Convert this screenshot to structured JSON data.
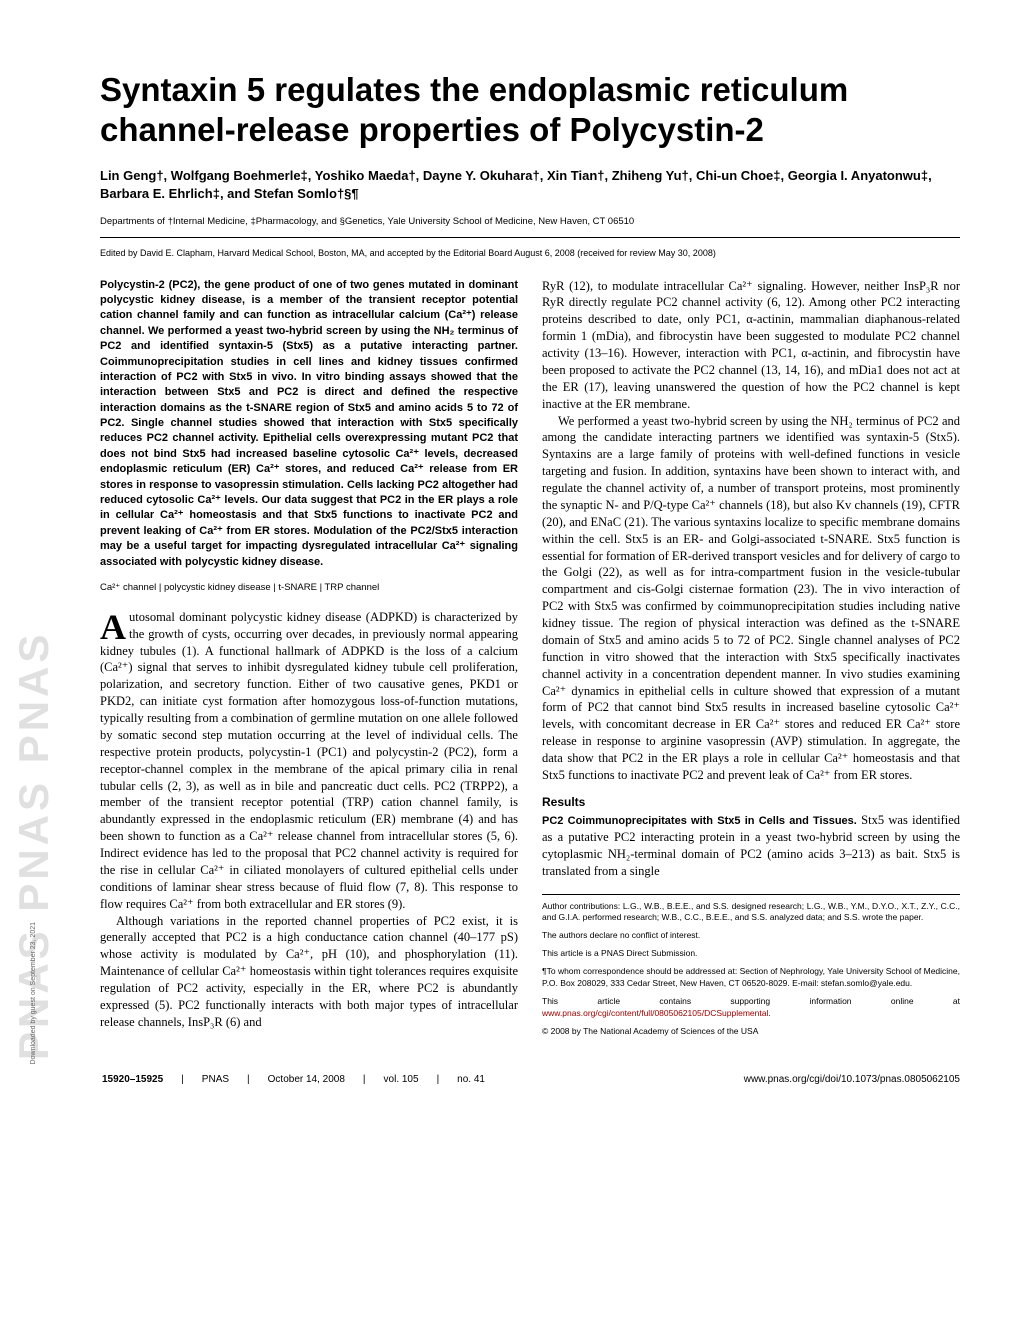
{
  "title": "Syntaxin 5 regulates the endoplasmic reticulum channel-release properties of Polycystin-2",
  "authors": "Lin Geng†, Wolfgang Boehmerle‡, Yoshiko Maeda†, Dayne Y. Okuhara†, Xin Tian†, Zhiheng Yu†, Chi-un Choe‡, Georgia I. Anyatonwu‡, Barbara E. Ehrlich‡, and Stefan Somlo†§¶",
  "affiliations": "Departments of †Internal Medicine, ‡Pharmacology, and §Genetics, Yale University School of Medicine, New Haven, CT 06510",
  "editor_note": "Edited by David E. Clapham, Harvard Medical School, Boston, MA, and accepted by the Editorial Board August 6, 2008 (received for review May 30, 2008)",
  "abstract": "Polycystin-2 (PC2), the gene product of one of two genes mutated in dominant polycystic kidney disease, is a member of the transient receptor potential cation channel family and can function as intracellular calcium (Ca²⁺) release channel. We performed a yeast two-hybrid screen by using the NH₂ terminus of PC2 and identified syntaxin-5 (Stx5) as a putative interacting partner. Coimmunoprecipitation studies in cell lines and kidney tissues confirmed interaction of PC2 with Stx5 in vivo. In vitro binding assays showed that the interaction between Stx5 and PC2 is direct and defined the respective interaction domains as the t-SNARE region of Stx5 and amino acids 5 to 72 of PC2. Single channel studies showed that interaction with Stx5 specifically reduces PC2 channel activity. Epithelial cells overexpressing mutant PC2 that does not bind Stx5 had increased baseline cytosolic Ca²⁺ levels, decreased endoplasmic reticulum (ER) Ca²⁺ stores, and reduced Ca²⁺ release from ER stores in response to vasopressin stimulation. Cells lacking PC2 altogether had reduced cytosolic Ca²⁺ levels. Our data suggest that PC2 in the ER plays a role in cellular Ca²⁺ homeostasis and that Stx5 functions to inactivate PC2 and prevent leaking of Ca²⁺ from ER stores. Modulation of the PC2/Stx5 interaction may be a useful target for impacting dysregulated intracellular Ca²⁺ signaling associated with polycystic kidney disease.",
  "keywords": "Ca²⁺ channel | polycystic kidney disease | t-SNARE | TRP channel",
  "intro_first_letter": "A",
  "intro_para1": "utosomal dominant polycystic kidney disease (ADPKD) is characterized by the growth of cysts, occurring over decades, in previously normal appearing kidney tubules (1). A functional hallmark of ADPKD is the loss of a calcium (Ca²⁺) signal that serves to inhibit dysregulated kidney tubule cell proliferation, polarization, and secretory function. Either of two causative genes, PKD1 or PKD2, can initiate cyst formation after homozygous loss-of-function mutations, typically resulting from a combination of germline mutation on one allele followed by somatic second step mutation occurring at the level of individual cells. The respective protein products, polycystin-1 (PC1) and polycystin-2 (PC2), form a receptor-channel complex in the membrane of the apical primary cilia in renal tubular cells (2, 3), as well as in bile and pancreatic duct cells. PC2 (TRPP2), a member of the transient receptor potential (TRP) cation channel family, is abundantly expressed in the endoplasmic reticulum (ER) membrane (4) and has been shown to function as a Ca²⁺ release channel from intracellular stores (5, 6). Indirect evidence has led to the proposal that PC2 channel activity is required for the rise in cellular Ca²⁺ in ciliated monolayers of cultured epithelial cells under conditions of laminar shear stress because of fluid flow (7, 8). This response to flow requires Ca²⁺ from both extracellular and ER stores (9).",
  "intro_para2": "Although variations in the reported channel properties of PC2 exist, it is generally accepted that PC2 is a high conductance cation channel (40–177 pS) whose activity is modulated by Ca²⁺, pH (10), and phosphorylation (11). Maintenance of cellular Ca²⁺ homeostasis within tight tolerances requires exquisite regulation of PC2 activity, especially in the ER, where PC2 is abundantly expressed (5). PC2 functionally interacts with both major types of intracellular release channels, InsP₃R (6) and",
  "col2_para1": "RyR (12), to modulate intracellular Ca²⁺ signaling. However, neither InsP₃R nor RyR directly regulate PC2 channel activity (6, 12). Among other PC2 interacting proteins described to date, only PC1, α-actinin, mammalian diaphanous-related formin 1 (mDia), and fibrocystin have been suggested to modulate PC2 channel activity (13–16). However, interaction with PC1, α-actinin, and fibrocystin have been proposed to activate the PC2 channel (13, 14, 16), and mDia1 does not act at the ER (17), leaving unanswered the question of how the PC2 channel is kept inactive at the ER membrane.",
  "col2_para2": "We performed a yeast two-hybrid screen by using the NH₂ terminus of PC2 and among the candidate interacting partners we identified was syntaxin-5 (Stx5). Syntaxins are a large family of proteins with well-defined functions in vesicle targeting and fusion. In addition, syntaxins have been shown to interact with, and regulate the channel activity of, a number of transport proteins, most prominently the synaptic N- and P/Q-type Ca²⁺ channels (18), but also Kv channels (19), CFTR (20), and ENaC (21). The various syntaxins localize to specific membrane domains within the cell. Stx5 is an ER- and Golgi-associated t-SNARE. Stx5 function is essential for formation of ER-derived transport vesicles and for delivery of cargo to the Golgi (22), as well as for intra-compartment fusion in the vesicle-tubular compartment and cis-Golgi cisternae formation (23). The in vivo interaction of PC2 with Stx5 was confirmed by coimmunoprecipitation studies including native kidney tissue. The region of physical interaction was defined as the t-SNARE domain of Stx5 and amino acids 5 to 72 of PC2. Single channel analyses of PC2 function in vitro showed that the interaction with Stx5 specifically inactivates channel activity in a concentration dependent manner. In vivo studies examining Ca²⁺ dynamics in epithelial cells in culture showed that expression of a mutant form of PC2 that cannot bind Stx5 results in increased baseline cytosolic Ca²⁺ levels, with concomitant decrease in ER Ca²⁺ stores and reduced ER Ca²⁺ store release in response to arginine vasopressin (AVP) stimulation. In aggregate, the data show that PC2 in the ER plays a role in cellular Ca²⁺ homeostasis and that Stx5 functions to inactivate PC2 and prevent leak of Ca²⁺ from ER stores.",
  "results_head": "Results",
  "results_sub": "PC2 Coimmunoprecipitates with Stx5 in Cells and Tissues.",
  "results_text": " Stx5 was identified as a putative PC2 interacting protein in a yeast two-hybrid screen by using the cytoplasmic NH₂-terminal domain of PC2 (amino acids 3–213) as bait. Stx5 is translated from a single",
  "fn1": "Author contributions: L.G., W.B., B.E.E., and S.S. designed research; L.G., W.B., Y.M., D.Y.O., X.T., Z.Y., C.C., and G.I.A. performed research; W.B., C.C., B.E.E., and S.S. analyzed data; and S.S. wrote the paper.",
  "fn2": "The authors declare no conflict of interest.",
  "fn3": "This article is a PNAS Direct Submission.",
  "fn4": "¶To whom correspondence should be addressed at: Section of Nephrology, Yale University School of Medicine, P.O. Box 208029, 333 Cedar Street, New Haven, CT 06520-8029. E-mail: stefan.somlo@yale.edu.",
  "fn5_pre": "This article contains supporting information online at ",
  "fn5_link": "www.pnas.org/cgi/content/full/0805062105/DCSupplemental",
  "fn5_post": ".",
  "fn6": "© 2008 by The National Academy of Sciences of the USA",
  "footer": {
    "pages": "15920–15925",
    "journal": "PNAS",
    "date": "October 14, 2008",
    "vol": "vol. 105",
    "no": "no. 41",
    "doi": "www.pnas.org/cgi/doi/10.1073/pnas.0805062105"
  },
  "watermark": "PNAS  PNAS  PNAS",
  "download": "Downloaded by guest on September 23, 2021"
}
